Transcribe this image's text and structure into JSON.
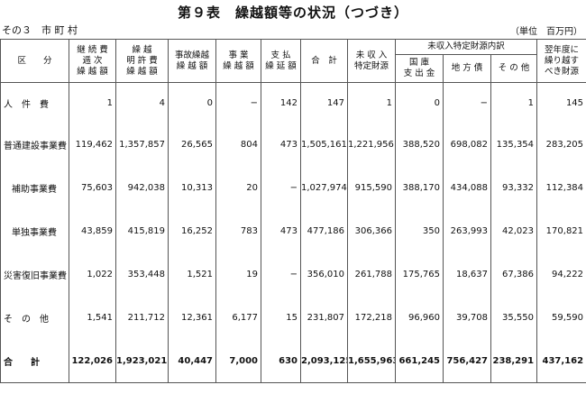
{
  "title": "第９表　繰越額等の状況（つづき）",
  "subtitle": "その３　市 町 村",
  "unit": "（単位　百万円）",
  "headers": {
    "kubun": "区　　分",
    "keizoku": "継 続 費\n逓 次\n繰 越 額",
    "meikyo": "繰 越\n明 許 費\n繰 越 額",
    "jiko": "事故繰越\n繰 越 額",
    "jigyo": "事 業\n繰 越 額",
    "shiharai": "支 払\n繰 延 額",
    "gokei": "合　計",
    "mishunyu": "未 収 入\n特定財源",
    "uchiwake": "未収入特定財源内訳",
    "kokko": "国 庫\n支 出 金",
    "chihosai": "地 方 債",
    "sonota": "そ の 他",
    "yokunendo": "翌年度に\n繰り越す\nべき財源"
  },
  "rows": [
    {
      "label": "人　件　費",
      "spread": true,
      "indent": false,
      "values": [
        "1",
        "4",
        "0",
        "−",
        "142",
        "147",
        "1",
        "0",
        "−",
        "1",
        "145"
      ]
    },
    {
      "label": "普通建設事業費",
      "spread": false,
      "indent": false,
      "values": [
        "119,462",
        "1,357,857",
        "26,565",
        "804",
        "473",
        "1,505,161",
        "1,221,956",
        "388,520",
        "698,082",
        "135,354",
        "283,205"
      ]
    },
    {
      "label": "補助事業費",
      "spread": false,
      "indent": true,
      "values": [
        "75,603",
        "942,038",
        "10,313",
        "20",
        "−",
        "1,027,974",
        "915,590",
        "388,170",
        "434,088",
        "93,332",
        "112,384"
      ]
    },
    {
      "label": "単独事業費",
      "spread": false,
      "indent": true,
      "values": [
        "43,859",
        "415,819",
        "16,252",
        "783",
        "473",
        "477,186",
        "306,366",
        "350",
        "263,993",
        "42,023",
        "170,821"
      ]
    },
    {
      "label": "災害復旧事業費",
      "spread": false,
      "indent": false,
      "values": [
        "1,022",
        "353,448",
        "1,521",
        "19",
        "−",
        "356,010",
        "261,788",
        "175,765",
        "18,637",
        "67,386",
        "94,222"
      ]
    },
    {
      "label": "そ　の　他",
      "spread": true,
      "indent": false,
      "values": [
        "1,541",
        "211,712",
        "12,361",
        "6,177",
        "15",
        "231,807",
        "172,218",
        "96,960",
        "39,708",
        "35,550",
        "59,590"
      ]
    },
    {
      "label": "合　　計",
      "spread": true,
      "indent": false,
      "total": true,
      "values": [
        "122,026",
        "1,923,021",
        "40,447",
        "7,000",
        "630",
        "2,093,125",
        "1,655,963",
        "661,245",
        "756,427",
        "238,291",
        "437,162"
      ]
    }
  ]
}
